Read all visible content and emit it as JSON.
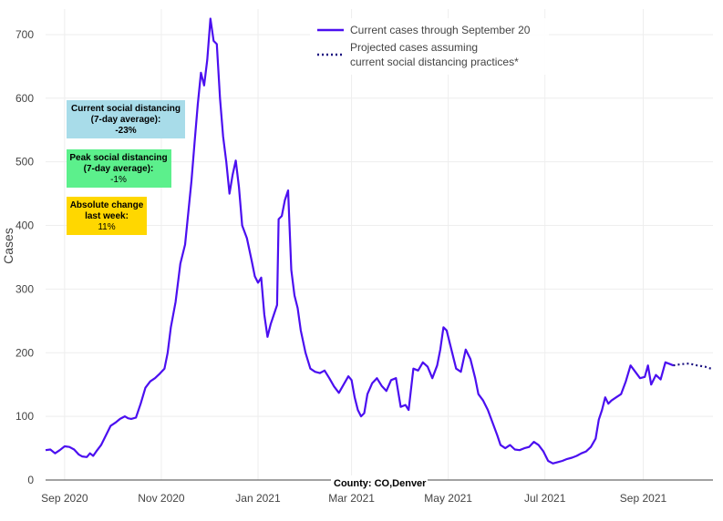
{
  "chart_data": {
    "type": "line",
    "ylabel": "Cases",
    "ylim": [
      0,
      740
    ],
    "yticks": [
      0,
      100,
      200,
      300,
      400,
      500,
      600,
      700
    ],
    "x_start": "2020-08-20",
    "x_end": "2021-10-15",
    "xticks": [
      {
        "label": "Sep 2020",
        "date": "2020-09-01"
      },
      {
        "label": "Nov 2020",
        "date": "2020-11-01"
      },
      {
        "label": "Jan 2021",
        "date": "2021-01-01"
      },
      {
        "label": "Mar 2021",
        "date": "2021-03-01"
      },
      {
        "label": "May 2021",
        "date": "2021-05-01"
      },
      {
        "label": "Jul 2021",
        "date": "2021-07-01"
      },
      {
        "label": "Sep 2021",
        "date": "2021-09-01"
      }
    ],
    "grid": true,
    "legend_position": "top-right",
    "series": [
      {
        "name": "Current cases through September 20",
        "style": "solid",
        "color": "#4b0ff0",
        "points": [
          [
            "2020-08-20",
            47
          ],
          [
            "2020-08-23",
            48
          ],
          [
            "2020-08-26",
            42
          ],
          [
            "2020-08-29",
            47
          ],
          [
            "2020-09-01",
            53
          ],
          [
            "2020-09-04",
            52
          ],
          [
            "2020-09-07",
            48
          ],
          [
            "2020-09-10",
            40
          ],
          [
            "2020-09-12",
            37
          ],
          [
            "2020-09-15",
            36
          ],
          [
            "2020-09-17",
            42
          ],
          [
            "2020-09-19",
            38
          ],
          [
            "2020-09-21",
            45
          ],
          [
            "2020-09-24",
            55
          ],
          [
            "2020-09-27",
            70
          ],
          [
            "2020-09-30",
            85
          ],
          [
            "2020-10-03",
            90
          ],
          [
            "2020-10-06",
            96
          ],
          [
            "2020-10-09",
            100
          ],
          [
            "2020-10-11",
            97
          ],
          [
            "2020-10-13",
            96
          ],
          [
            "2020-10-16",
            98
          ],
          [
            "2020-10-19",
            120
          ],
          [
            "2020-10-22",
            145
          ],
          [
            "2020-10-25",
            155
          ],
          [
            "2020-10-28",
            160
          ],
          [
            "2020-10-31",
            167
          ],
          [
            "2020-11-03",
            175
          ],
          [
            "2020-11-05",
            200
          ],
          [
            "2020-11-07",
            240
          ],
          [
            "2020-11-10",
            280
          ],
          [
            "2020-11-13",
            340
          ],
          [
            "2020-11-16",
            370
          ],
          [
            "2020-11-18",
            420
          ],
          [
            "2020-11-20",
            470
          ],
          [
            "2020-11-22",
            530
          ],
          [
            "2020-11-24",
            590
          ],
          [
            "2020-11-26",
            640
          ],
          [
            "2020-11-28",
            620
          ],
          [
            "2020-11-30",
            660
          ],
          [
            "2020-12-02",
            725
          ],
          [
            "2020-12-04",
            690
          ],
          [
            "2020-12-06",
            685
          ],
          [
            "2020-12-08",
            600
          ],
          [
            "2020-12-10",
            540
          ],
          [
            "2020-12-12",
            500
          ],
          [
            "2020-12-14",
            450
          ],
          [
            "2020-12-16",
            480
          ],
          [
            "2020-12-18",
            502
          ],
          [
            "2020-12-20",
            460
          ],
          [
            "2020-12-22",
            400
          ],
          [
            "2020-12-25",
            380
          ],
          [
            "2020-12-28",
            345
          ],
          [
            "2020-12-30",
            320
          ],
          [
            "2021-01-01",
            310
          ],
          [
            "2021-01-03",
            318
          ],
          [
            "2021-01-05",
            260
          ],
          [
            "2021-01-07",
            225
          ],
          [
            "2021-01-09",
            245
          ],
          [
            "2021-01-11",
            260
          ],
          [
            "2021-01-13",
            275
          ],
          [
            "2021-01-14",
            410
          ],
          [
            "2021-01-16",
            415
          ],
          [
            "2021-01-18",
            440
          ],
          [
            "2021-01-20",
            455
          ],
          [
            "2021-01-22",
            330
          ],
          [
            "2021-01-24",
            290
          ],
          [
            "2021-01-26",
            270
          ],
          [
            "2021-01-28",
            235
          ],
          [
            "2021-01-31",
            200
          ],
          [
            "2021-02-03",
            175
          ],
          [
            "2021-02-06",
            170
          ],
          [
            "2021-02-09",
            168
          ],
          [
            "2021-02-12",
            172
          ],
          [
            "2021-02-15",
            160
          ],
          [
            "2021-02-18",
            147
          ],
          [
            "2021-02-21",
            137
          ],
          [
            "2021-02-24",
            150
          ],
          [
            "2021-02-27",
            163
          ],
          [
            "2021-03-01",
            157
          ],
          [
            "2021-03-03",
            130
          ],
          [
            "2021-03-05",
            110
          ],
          [
            "2021-03-07",
            100
          ],
          [
            "2021-03-09",
            105
          ],
          [
            "2021-03-11",
            135
          ],
          [
            "2021-03-14",
            152
          ],
          [
            "2021-03-17",
            160
          ],
          [
            "2021-03-20",
            148
          ],
          [
            "2021-03-23",
            140
          ],
          [
            "2021-03-26",
            157
          ],
          [
            "2021-03-29",
            160
          ],
          [
            "2021-04-01",
            115
          ],
          [
            "2021-04-04",
            118
          ],
          [
            "2021-04-06",
            110
          ],
          [
            "2021-04-09",
            175
          ],
          [
            "2021-04-12",
            172
          ],
          [
            "2021-04-15",
            185
          ],
          [
            "2021-04-18",
            178
          ],
          [
            "2021-04-21",
            160
          ],
          [
            "2021-04-24",
            180
          ],
          [
            "2021-04-26",
            205
          ],
          [
            "2021-04-28",
            240
          ],
          [
            "2021-04-30",
            235
          ],
          [
            "2021-05-03",
            205
          ],
          [
            "2021-05-06",
            175
          ],
          [
            "2021-05-09",
            170
          ],
          [
            "2021-05-12",
            205
          ],
          [
            "2021-05-15",
            190
          ],
          [
            "2021-05-18",
            160
          ],
          [
            "2021-05-20",
            135
          ],
          [
            "2021-05-23",
            125
          ],
          [
            "2021-05-26",
            110
          ],
          [
            "2021-05-29",
            90
          ],
          [
            "2021-06-01",
            70
          ],
          [
            "2021-06-03",
            55
          ],
          [
            "2021-06-06",
            50
          ],
          [
            "2021-06-09",
            55
          ],
          [
            "2021-06-12",
            48
          ],
          [
            "2021-06-15",
            47
          ],
          [
            "2021-06-18",
            50
          ],
          [
            "2021-06-21",
            52
          ],
          [
            "2021-06-24",
            60
          ],
          [
            "2021-06-27",
            55
          ],
          [
            "2021-06-30",
            45
          ],
          [
            "2021-07-03",
            30
          ],
          [
            "2021-07-06",
            26
          ],
          [
            "2021-07-09",
            28
          ],
          [
            "2021-07-12",
            30
          ],
          [
            "2021-07-15",
            33
          ],
          [
            "2021-07-18",
            35
          ],
          [
            "2021-07-21",
            38
          ],
          [
            "2021-07-24",
            42
          ],
          [
            "2021-07-27",
            45
          ],
          [
            "2021-07-30",
            52
          ],
          [
            "2021-08-02",
            65
          ],
          [
            "2021-08-04",
            95
          ],
          [
            "2021-08-06",
            110
          ],
          [
            "2021-08-08",
            130
          ],
          [
            "2021-08-10",
            120
          ],
          [
            "2021-08-12",
            125
          ],
          [
            "2021-08-15",
            130
          ],
          [
            "2021-08-18",
            135
          ],
          [
            "2021-08-21",
            155
          ],
          [
            "2021-08-24",
            180
          ],
          [
            "2021-08-27",
            170
          ],
          [
            "2021-08-30",
            160
          ],
          [
            "2021-09-02",
            162
          ],
          [
            "2021-09-04",
            180
          ],
          [
            "2021-09-06",
            150
          ],
          [
            "2021-09-09",
            165
          ],
          [
            "2021-09-12",
            158
          ],
          [
            "2021-09-15",
            185
          ],
          [
            "2021-09-18",
            182
          ],
          [
            "2021-09-20",
            180
          ]
        ]
      },
      {
        "name": "Projected cases assuming current social distancing practices*",
        "style": "dotted",
        "color": "#1a1080",
        "points": [
          [
            "2021-09-20",
            180
          ],
          [
            "2021-09-25",
            182
          ],
          [
            "2021-09-30",
            183
          ],
          [
            "2021-10-05",
            180
          ],
          [
            "2021-10-10",
            178
          ],
          [
            "2021-10-15",
            174
          ]
        ]
      }
    ],
    "legend": {
      "current_label": "Current cases through September 20",
      "projected_line1": "Projected cases assuming",
      "projected_line2": "current social distancing practices*"
    },
    "annotations": {
      "current": {
        "line1": "Current social distancing",
        "line2": "(7-day average):",
        "value": "-23%",
        "color": "#a8dce9"
      },
      "peak": {
        "line1": "Peak social distancing",
        "line2": "(7-day average):",
        "value": "-1%",
        "color": "#5cf08c"
      },
      "absolute": {
        "line1": "Absolute change",
        "line2": "last week:",
        "value": "11%",
        "color": "#ffd700"
      },
      "county": "County: CO,Denver"
    }
  }
}
